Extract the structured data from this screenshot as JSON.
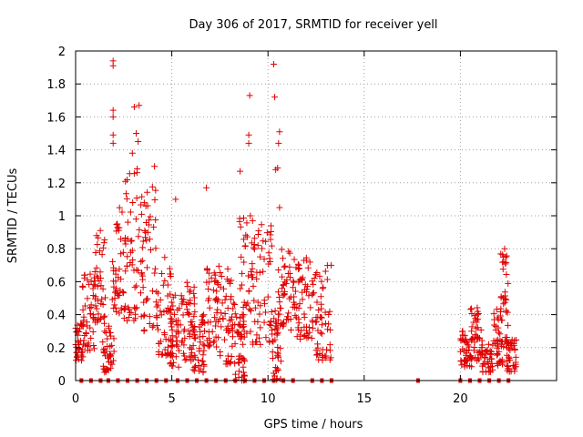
{
  "chart_data": {
    "type": "scatter",
    "title": "Day 306 of 2017, SRMTID for receiver yell",
    "xlabel": "GPS time / hours",
    "ylabel": "SRMTID / TECUs",
    "xlim": [
      0,
      25
    ],
    "ylim": [
      0,
      2
    ],
    "x_ticks": [
      "0",
      "5",
      "10",
      "15",
      "20"
    ],
    "y_ticks": [
      "0",
      "0.2",
      "0.4",
      "0.6",
      "0.8",
      "1",
      "1.2",
      "1.4",
      "1.6",
      "1.8",
      "2"
    ],
    "grid": true,
    "series": [
      {
        "name": "SRMTID",
        "color": "#e00000",
        "marker": "plus",
        "clusters": [
          {
            "x_start": 0.0,
            "x_end": 0.4,
            "y_low": 0.12,
            "y_high": 0.35
          },
          {
            "x_start": 0.3,
            "x_end": 1.0,
            "y_low": 0.18,
            "y_high": 0.65
          },
          {
            "x_start": 1.0,
            "x_end": 1.6,
            "y_low": 0.35,
            "y_high": 0.92
          },
          {
            "x_start": 1.4,
            "x_end": 2.0,
            "y_low": 0.05,
            "y_high": 0.35
          },
          {
            "x_start": 1.9,
            "x_end": 2.5,
            "y_low": 0.4,
            "y_high": 1.05
          },
          {
            "x_start": 2.5,
            "x_end": 3.5,
            "y_low": 0.35,
            "y_high": 1.3
          },
          {
            "x_start": 3.4,
            "x_end": 4.3,
            "y_low": 0.3,
            "y_high": 1.2
          },
          {
            "x_start": 4.3,
            "x_end": 5.0,
            "y_low": 0.15,
            "y_high": 0.8
          },
          {
            "x_start": 4.9,
            "x_end": 5.5,
            "y_low": 0.08,
            "y_high": 0.55
          },
          {
            "x_start": 5.5,
            "x_end": 6.2,
            "y_low": 0.12,
            "y_high": 0.6
          },
          {
            "x_start": 6.0,
            "x_end": 6.8,
            "y_low": 0.05,
            "y_high": 0.4
          },
          {
            "x_start": 6.8,
            "x_end": 7.6,
            "y_low": 0.2,
            "y_high": 0.7
          },
          {
            "x_start": 7.5,
            "x_end": 8.3,
            "y_low": 0.1,
            "y_high": 0.7
          },
          {
            "x_start": 8.3,
            "x_end": 8.8,
            "y_low": 0.0,
            "y_high": 0.4
          },
          {
            "x_start": 8.5,
            "x_end": 9.2,
            "y_low": 0.25,
            "y_high": 1.0
          },
          {
            "x_start": 9.2,
            "x_end": 10.2,
            "y_low": 0.2,
            "y_high": 0.95
          },
          {
            "x_start": 10.2,
            "x_end": 10.7,
            "y_low": 0.0,
            "y_high": 0.45
          },
          {
            "x_start": 10.5,
            "x_end": 11.5,
            "y_low": 0.3,
            "y_high": 0.8
          },
          {
            "x_start": 11.5,
            "x_end": 12.5,
            "y_low": 0.25,
            "y_high": 0.75
          },
          {
            "x_start": 12.5,
            "x_end": 13.3,
            "y_low": 0.12,
            "y_high": 0.7
          },
          {
            "x_start": 20.0,
            "x_end": 20.6,
            "y_low": 0.08,
            "y_high": 0.3
          },
          {
            "x_start": 20.5,
            "x_end": 21.1,
            "y_low": 0.12,
            "y_high": 0.45
          },
          {
            "x_start": 21.1,
            "x_end": 21.7,
            "y_low": 0.05,
            "y_high": 0.25
          },
          {
            "x_start": 21.7,
            "x_end": 22.2,
            "y_low": 0.08,
            "y_high": 0.45
          },
          {
            "x_start": 22.1,
            "x_end": 22.5,
            "y_low": 0.2,
            "y_high": 0.8
          },
          {
            "x_start": 22.4,
            "x_end": 22.9,
            "y_low": 0.05,
            "y_high": 0.25
          }
        ],
        "notable_points": [
          {
            "x": 1.95,
            "y": 1.94
          },
          {
            "x": 1.95,
            "y": 1.91
          },
          {
            "x": 1.95,
            "y": 1.64
          },
          {
            "x": 1.95,
            "y": 1.6
          },
          {
            "x": 1.95,
            "y": 1.49
          },
          {
            "x": 1.95,
            "y": 1.44
          },
          {
            "x": 3.05,
            "y": 1.66
          },
          {
            "x": 3.3,
            "y": 1.67
          },
          {
            "x": 3.15,
            "y": 1.5
          },
          {
            "x": 3.25,
            "y": 1.45
          },
          {
            "x": 2.95,
            "y": 1.38
          },
          {
            "x": 4.1,
            "y": 1.3
          },
          {
            "x": 6.8,
            "y": 1.17
          },
          {
            "x": 8.55,
            "y": 1.27
          },
          {
            "x": 9.0,
            "y": 1.49
          },
          {
            "x": 9.05,
            "y": 1.73
          },
          {
            "x": 9.0,
            "y": 1.44
          },
          {
            "x": 10.3,
            "y": 1.92
          },
          {
            "x": 10.35,
            "y": 1.72
          },
          {
            "x": 10.6,
            "y": 1.51
          },
          {
            "x": 10.55,
            "y": 1.44
          },
          {
            "x": 10.4,
            "y": 1.28
          },
          {
            "x": 10.5,
            "y": 1.29
          },
          {
            "x": 10.6,
            "y": 1.05
          },
          {
            "x": 5.2,
            "y": 1.1
          },
          {
            "x": 22.3,
            "y": 0.8
          },
          {
            "x": 22.35,
            "y": 0.75
          }
        ]
      },
      {
        "name": "zero-level markers",
        "color": "#e00000",
        "marker": "square",
        "y": 0,
        "x": [
          0.3,
          0.8,
          1.3,
          1.7,
          2.2,
          2.7,
          3.2,
          3.7,
          4.2,
          4.7,
          5.3,
          5.8,
          6.3,
          6.8,
          7.3,
          7.8,
          8.3,
          8.8,
          9.3,
          9.8,
          10.3,
          10.8,
          11.3,
          12.3,
          12.8,
          13.3,
          17.8,
          20.0,
          20.5,
          21.0,
          21.5,
          22.0,
          22.5
        ]
      }
    ]
  }
}
